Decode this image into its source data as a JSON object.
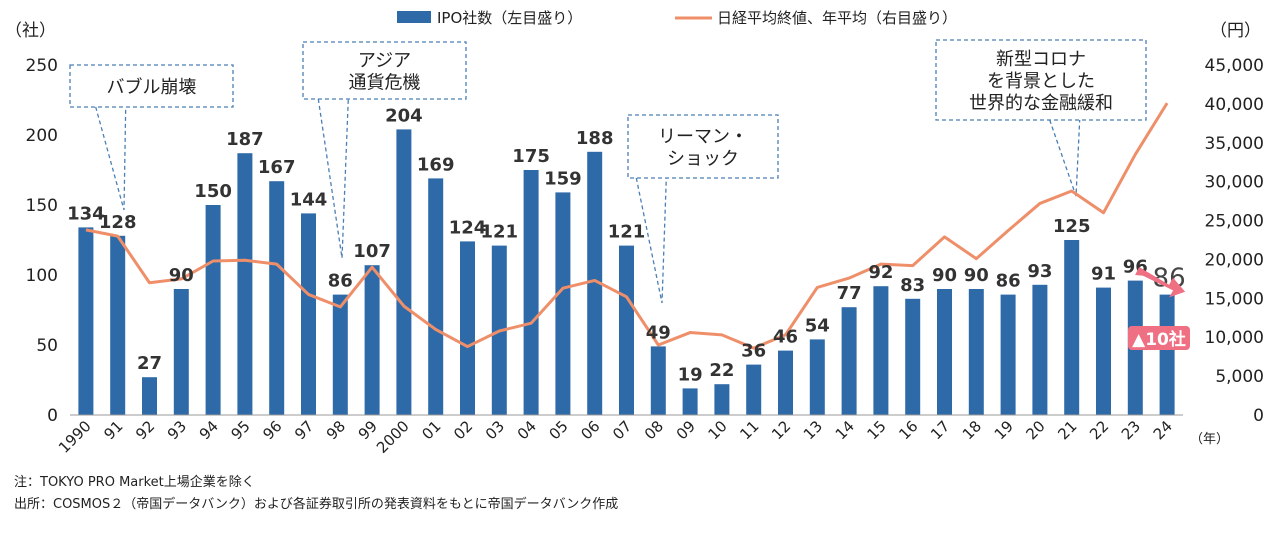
{
  "chart_data": {
    "type": "bar+line",
    "categories": [
      "1990",
      "91",
      "92",
      "93",
      "94",
      "95",
      "96",
      "97",
      "98",
      "99",
      "2000",
      "01",
      "02",
      "03",
      "04",
      "05",
      "06",
      "07",
      "08",
      "09",
      "10",
      "11",
      "12",
      "13",
      "14",
      "15",
      "16",
      "17",
      "18",
      "19",
      "20",
      "21",
      "22",
      "23",
      "24"
    ],
    "series": [
      {
        "name": "IPO社数（左目盛り）",
        "type": "bar",
        "axis": "left",
        "values": [
          134,
          128,
          27,
          90,
          150,
          187,
          167,
          144,
          86,
          107,
          204,
          169,
          124,
          121,
          175,
          159,
          188,
          121,
          49,
          19,
          22,
          36,
          46,
          54,
          77,
          92,
          83,
          90,
          90,
          86,
          93,
          125,
          91,
          96,
          86
        ]
      },
      {
        "name": "日経平均終値、年平均（右目盛り）",
        "type": "line",
        "axis": "right",
        "values": [
          23800,
          23000,
          17000,
          17500,
          19800,
          19900,
          19400,
          15500,
          13900,
          19000,
          14000,
          11000,
          8800,
          10800,
          11800,
          16300,
          17300,
          15200,
          9000,
          10600,
          10300,
          8600,
          10300,
          16400,
          17600,
          19400,
          19200,
          22900,
          20100,
          23700,
          27200,
          28800,
          26000,
          33500,
          40100
        ]
      }
    ],
    "left_axis": {
      "unit": "（社）",
      "ticks": [
        "0",
        "50",
        "100",
        "150",
        "200",
        "250"
      ],
      "min": 0,
      "max": 250
    },
    "right_axis": {
      "unit": "（円）",
      "ticks": [
        "0",
        "5,000",
        "10,000",
        "15,000",
        "20,000",
        "25,000",
        "30,000",
        "35,000",
        "40,000",
        "45,000"
      ],
      "min": 0,
      "max": 45000
    },
    "x_unit": "（年）",
    "legend": {
      "position": "top"
    },
    "annotations": [
      {
        "id": "bubble",
        "text": [
          "バブル崩壊"
        ],
        "category": "91"
      },
      {
        "id": "asia",
        "text": [
          "アジア",
          "通貨危機"
        ],
        "category": "98"
      },
      {
        "id": "lehman",
        "text": [
          "リーマン・",
          "ショック"
        ],
        "category": "08"
      },
      {
        "id": "corona",
        "text": [
          "新型コロナ",
          "を背景とした",
          "世界的な金融緩和"
        ],
        "category": "21"
      }
    ],
    "highlight": {
      "value_label": "86",
      "change_label": "▲10社"
    },
    "grid": false
  },
  "colors": {
    "bar": "#2e6aa8",
    "line": "#ef8f6a",
    "highlight": "#ef6f83",
    "annotation_border": "#4a7fb5"
  },
  "notes": [
    "注：TOKYO PRO Market上場企業を除く",
    "出所：COSMOS２（帝国データバンク）および各証券取引所の発表資料をもとに帝国データバンク作成"
  ]
}
